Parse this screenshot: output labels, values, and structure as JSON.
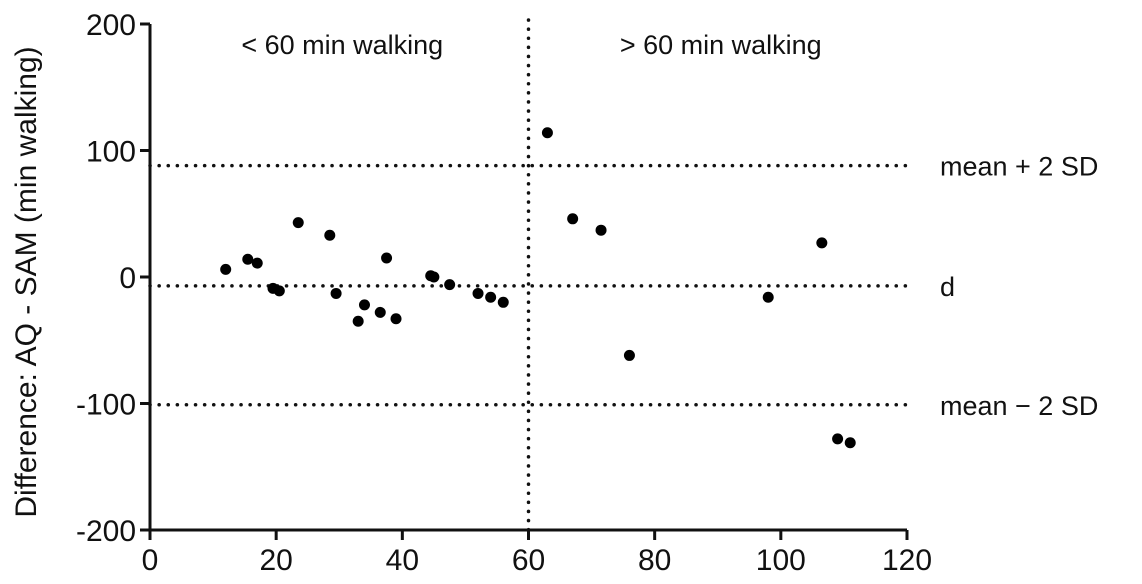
{
  "chart_data": {
    "type": "scatter",
    "title": "",
    "xlabel": "",
    "ylabel": "Difference: AQ - SAM (min walking)",
    "xlim": [
      0,
      120
    ],
    "ylim": [
      -200,
      200
    ],
    "x_ticks": [
      0,
      20,
      40,
      60,
      80,
      100,
      120
    ],
    "y_ticks": [
      -200,
      -100,
      0,
      100,
      200
    ],
    "grid": false,
    "series": [
      {
        "x": [
          12,
          15.5,
          17,
          19.5,
          20.5,
          23.5,
          28.5,
          29.5,
          33,
          34,
          36.5,
          37.5,
          39,
          44.5,
          45,
          47.5,
          52,
          54,
          56,
          63,
          67,
          71.5,
          76,
          98,
          106.5,
          109,
          111
        ],
        "y": [
          6,
          14,
          11,
          -9,
          -11,
          43,
          33,
          -13,
          -35,
          -22,
          -28,
          15,
          -33,
          1,
          0,
          -6,
          -13,
          -16,
          -20,
          114,
          46,
          37,
          -62,
          -16,
          27,
          -128,
          -131
        ]
      }
    ],
    "reference_lines": {
      "horizontal": [
        {
          "y": 88,
          "label": "mean + 2 SD"
        },
        {
          "y": -7,
          "label": "d"
        },
        {
          "y": -101,
          "label": "mean − 2 SD"
        }
      ],
      "vertical": [
        {
          "x": 60
        }
      ]
    },
    "annotations": [
      {
        "text": "< 60 min walking",
        "x": 30,
        "y": 184
      },
      {
        "text": "> 60 min walking",
        "x": 90,
        "y": 184
      }
    ]
  }
}
